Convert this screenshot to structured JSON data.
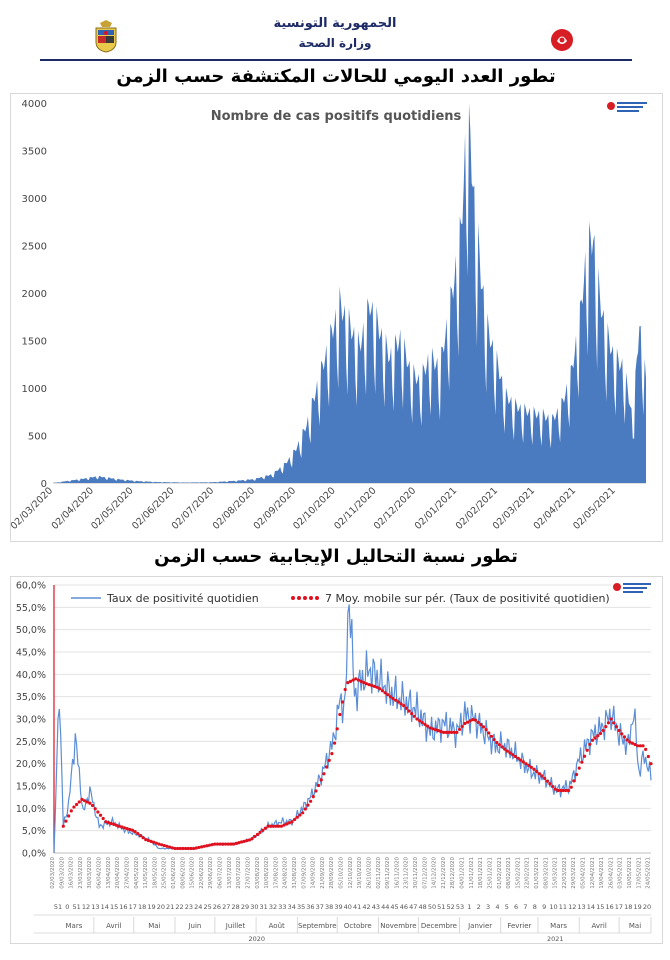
{
  "header": {
    "republic": "الجمهورية التونسية",
    "ministry": "وزارة الصحة"
  },
  "chart1": {
    "section_title": "تطور العدد اليومي للحالات المكتشفة حسب الزمن"
  },
  "chart2": {
    "section_title": "تطور نسبة التحاليل الإيجابية حسب الزمن"
  },
  "colors": {
    "area": "#4a7abf",
    "line": "#5b8ed6",
    "moving_avg": "#e0101e",
    "title_blue": "#1d2a66"
  },
  "chart_data": [
    {
      "type": "area",
      "title": "Nombre de cas positifs quotidiens",
      "x_tick_labels": [
        "02/03/2020",
        "02/04/2020",
        "02/05/2020",
        "02/06/2020",
        "02/07/2020",
        "02/08/2020",
        "02/09/2020",
        "02/10/2020",
        "02/11/2020",
        "02/12/2020",
        "02/01/2021",
        "02/02/2021",
        "02/03/2021",
        "02/04/2021",
        "02/05/2021"
      ],
      "y_tick_labels": [
        "0",
        "500",
        "1000",
        "1500",
        "2000",
        "2500",
        "3000",
        "3500",
        "4000"
      ],
      "ylim": [
        0,
        4000
      ],
      "x_range": [
        "2020-03-02",
        "2021-05-25"
      ],
      "series": [
        {
          "x": [
            "2020-03-02",
            "2020-03-25",
            "2020-04-05",
            "2020-04-20",
            "2020-05-05",
            "2020-05-20",
            "2020-06-10",
            "2020-07-01",
            "2020-07-20",
            "2020-08-01",
            "2020-08-15",
            "2020-08-25",
            "2020-09-02",
            "2020-09-10",
            "2020-09-20",
            "2020-09-28",
            "2020-10-05",
            "2020-10-12",
            "2020-10-20",
            "2020-10-28",
            "2020-11-05",
            "2020-11-12",
            "2020-11-20",
            "2020-11-28",
            "2020-12-05",
            "2020-12-12",
            "2020-12-20",
            "2020-12-28",
            "2021-01-05",
            "2021-01-10",
            "2021-01-15",
            "2021-01-20",
            "2021-01-25",
            "2021-02-01",
            "2021-02-08",
            "2021-02-15",
            "2021-02-22",
            "2021-03-01",
            "2021-03-08",
            "2021-03-15",
            "2021-03-22",
            "2021-03-29",
            "2021-04-05",
            "2021-04-10",
            "2021-04-15",
            "2021-04-20",
            "2021-04-25",
            "2021-05-01",
            "2021-05-08",
            "2021-05-15",
            "2021-05-20",
            "2021-05-25"
          ],
          "values": [
            0,
            45,
            70,
            40,
            20,
            10,
            5,
            8,
            25,
            40,
            90,
            200,
            350,
            600,
            1100,
            1500,
            1850,
            1650,
            1400,
            1850,
            1550,
            1300,
            1500,
            1150,
            1050,
            1300,
            1200,
            1850,
            2600,
            3950,
            2900,
            2150,
            1600,
            1250,
            900,
            800,
            750,
            720,
            700,
            650,
            800,
            1100,
            1700,
            2400,
            2550,
            1900,
            1550,
            1300,
            1200,
            650,
            1650,
            1050
          ]
        }
      ]
    },
    {
      "type": "line",
      "y_tick_labels": [
        "0,0%",
        "5,0%",
        "10,0%",
        "15,0%",
        "20,0%",
        "25,0%",
        "30,0%",
        "35,0%",
        "40,0%",
        "45,0%",
        "50,0%",
        "55,0%",
        "60,0%"
      ],
      "ylim": [
        0,
        60
      ],
      "x_week_labels": [
        "51",
        "0",
        "51",
        "12",
        "13",
        "14",
        "15",
        "16",
        "17",
        "18",
        "19",
        "20",
        "21",
        "22",
        "23",
        "24",
        "25",
        "26",
        "27",
        "28",
        "29",
        "30",
        "31",
        "32",
        "33",
        "34",
        "35",
        "36",
        "37",
        "38",
        "39",
        "40",
        "41",
        "42",
        "43",
        "44",
        "45",
        "46",
        "47",
        "48",
        "50",
        "51",
        "52",
        "53",
        "1",
        "2",
        "3",
        "4",
        "5",
        "6",
        "7",
        "8",
        "9",
        "10",
        "11",
        "12",
        "13",
        "14",
        "15",
        "16",
        "17",
        "18",
        "19",
        "20"
      ],
      "months_2020": [
        "Mars",
        "Avril",
        "Mai",
        "Juin",
        "Juillet",
        "Août",
        "Septembre",
        "Octobre",
        "Novembre",
        "Decembre"
      ],
      "months_2021": [
        "Janvier",
        "Fevrier",
        "Mars",
        "Avril",
        "Mai"
      ],
      "years": [
        "2020",
        "2021"
      ],
      "series": [
        {
          "name": "Taux de positivité quotidien",
          "x": [
            "2020-03-02",
            "2020-03-06",
            "2020-03-09",
            "2020-03-13",
            "2020-03-18",
            "2020-03-24",
            "2020-03-29",
            "2020-04-05",
            "2020-04-15",
            "2020-04-25",
            "2020-05-05",
            "2020-05-12",
            "2020-05-20",
            "2020-06-01",
            "2020-06-15",
            "2020-07-01",
            "2020-07-15",
            "2020-07-28",
            "2020-08-10",
            "2020-08-20",
            "2020-08-28",
            "2020-09-05",
            "2020-09-12",
            "2020-09-20",
            "2020-09-28",
            "2020-10-03",
            "2020-10-07",
            "2020-10-10",
            "2020-10-14",
            "2020-10-18",
            "2020-10-25",
            "2020-11-01",
            "2020-11-10",
            "2020-11-20",
            "2020-11-30",
            "2020-12-10",
            "2020-12-20",
            "2020-12-30",
            "2021-01-05",
            "2021-01-12",
            "2021-01-20",
            "2021-01-28",
            "2021-02-05",
            "2021-02-15",
            "2021-02-25",
            "2021-03-05",
            "2021-03-15",
            "2021-03-25",
            "2021-04-01",
            "2021-04-10",
            "2021-04-18",
            "2021-04-25",
            "2021-05-02",
            "2021-05-08",
            "2021-05-12",
            "2021-05-16",
            "2021-05-20",
            "2021-05-25"
          ],
          "values": [
            0,
            37,
            6,
            11,
            26,
            9,
            14,
            6,
            7,
            5,
            4,
            3,
            1,
            1,
            1,
            2,
            2,
            3,
            6,
            7,
            7,
            10,
            13,
            18,
            25,
            34,
            33,
            59,
            35,
            38,
            41,
            39,
            36,
            34,
            32,
            27,
            29,
            27,
            31,
            30,
            27,
            24,
            24,
            21,
            18,
            17,
            14,
            15,
            21,
            26,
            28,
            31,
            26,
            24,
            32,
            18,
            22,
            17
          ]
        },
        {
          "name": "7 Moy. mobile sur pér. (Taux de positivité quotidien)",
          "x": [
            "2020-03-09",
            "2020-03-16",
            "2020-03-23",
            "2020-03-30",
            "2020-04-10",
            "2020-04-20",
            "2020-05-01",
            "2020-05-10",
            "2020-05-20",
            "2020-06-01",
            "2020-06-15",
            "2020-07-01",
            "2020-07-15",
            "2020-07-28",
            "2020-08-10",
            "2020-08-20",
            "2020-08-28",
            "2020-09-05",
            "2020-09-12",
            "2020-09-20",
            "2020-09-28",
            "2020-10-03",
            "2020-10-08",
            "2020-10-15",
            "2020-10-22",
            "2020-11-01",
            "2020-11-10",
            "2020-11-20",
            "2020-11-30",
            "2020-12-10",
            "2020-12-20",
            "2020-12-30",
            "2021-01-05",
            "2021-01-12",
            "2021-01-20",
            "2021-01-28",
            "2021-02-05",
            "2021-02-15",
            "2021-02-25",
            "2021-03-05",
            "2021-03-15",
            "2021-03-25",
            "2021-04-01",
            "2021-04-10",
            "2021-04-18",
            "2021-04-25",
            "2021-05-02",
            "2021-05-08",
            "2021-05-15",
            "2021-05-20",
            "2021-05-25"
          ],
          "values": [
            6,
            10,
            12,
            11,
            7,
            6,
            5,
            3,
            2,
            1,
            1,
            2,
            2,
            3,
            6,
            6,
            7,
            9,
            12,
            17,
            23,
            31,
            38,
            39,
            38,
            37,
            35,
            33,
            30,
            28,
            27,
            27,
            29,
            30,
            28,
            25,
            23,
            21,
            19,
            17,
            14,
            14,
            19,
            25,
            27,
            30,
            27,
            25,
            24,
            24,
            20
          ]
        }
      ]
    }
  ]
}
